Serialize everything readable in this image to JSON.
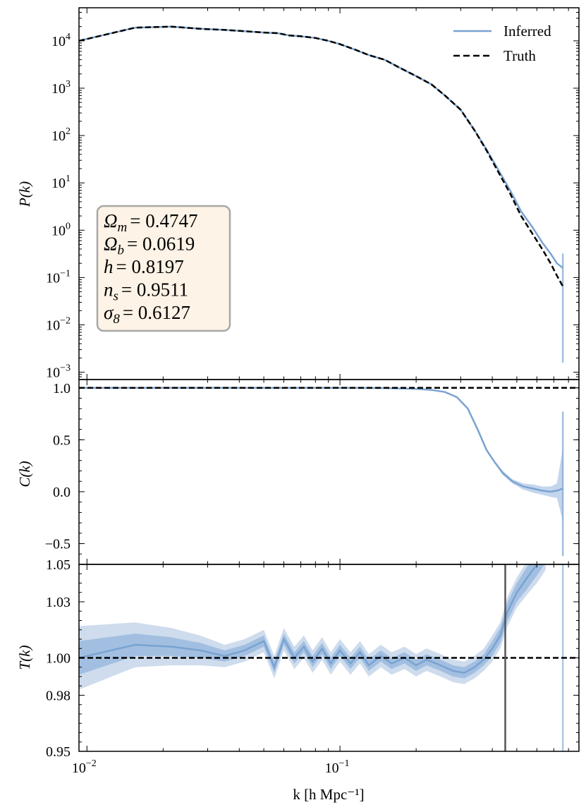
{
  "chart_data": {
    "type": "line",
    "xscale": "log",
    "xlim": [
      0.0093,
      0.88
    ],
    "xlabel": "k [h Mpc⁻¹]",
    "x_ticks": [
      {
        "value": 0.01,
        "base": "10",
        "exp": "−2"
      },
      {
        "value": 0.1,
        "base": "10",
        "exp": "−1"
      }
    ],
    "parameters": [
      {
        "symbol": "Ω",
        "sub": "m",
        "value": "= 0.4747"
      },
      {
        "symbol": "Ω",
        "sub": "b",
        "value": "= 0.0619"
      },
      {
        "symbol": "h",
        "sub": "",
        "value": "= 0.8197"
      },
      {
        "symbol": "n",
        "sub": "s",
        "value": "= 0.9511"
      },
      {
        "symbol": "σ",
        "sub": "8",
        "value": "= 0.6127"
      }
    ],
    "panels": [
      {
        "name": "P(k)",
        "ylabel": "P(k)",
        "yscale": "log",
        "ylim": [
          0.0007,
          50000
        ],
        "y_ticks": [
          {
            "value": 10000,
            "base": "10",
            "exp": "4"
          },
          {
            "value": 1000,
            "base": "10",
            "exp": "3"
          },
          {
            "value": 100,
            "base": "10",
            "exp": "2"
          },
          {
            "value": 10,
            "base": "10",
            "exp": "1"
          },
          {
            "value": 1,
            "base": "10",
            "exp": "0"
          },
          {
            "value": 0.1,
            "base": "10",
            "exp": "−1"
          },
          {
            "value": 0.01,
            "base": "10",
            "exp": "−2"
          },
          {
            "value": 0.001,
            "base": "10",
            "exp": "−3"
          }
        ],
        "legend_position": "top-right",
        "series": [
          {
            "name": "Inferred",
            "color": "#7aa3d1",
            "style": "solid",
            "x": [
              0.0093,
              0.0155,
              0.0215,
              0.028,
              0.035,
              0.042,
              0.05,
              0.057,
              0.063,
              0.07,
              0.08,
              0.09,
              0.1,
              0.115,
              0.13,
              0.15,
              0.17,
              0.2,
              0.23,
              0.26,
              0.3,
              0.34,
              0.38,
              0.42,
              0.47,
              0.52,
              0.58,
              0.63,
              0.68,
              0.72,
              0.76
            ],
            "y": [
              10000,
              19000,
              20000,
              18000,
              17000,
              16000,
              15000,
              14500,
              13000,
              12500,
              11500,
              10000,
              8500,
              6500,
              5000,
              4000,
              2800,
              1800,
              1200,
              700,
              350,
              130,
              50,
              20,
              7,
              2.5,
              1.1,
              0.55,
              0.32,
              0.2,
              0.16
            ]
          },
          {
            "name": "Truth",
            "color": "#000000",
            "style": "dashed",
            "x": [
              0.0093,
              0.0155,
              0.0215,
              0.028,
              0.035,
              0.042,
              0.05,
              0.057,
              0.063,
              0.07,
              0.08,
              0.09,
              0.1,
              0.115,
              0.13,
              0.15,
              0.17,
              0.2,
              0.23,
              0.26,
              0.3,
              0.34,
              0.38,
              0.42,
              0.47,
              0.52,
              0.58,
              0.63,
              0.68,
              0.72,
              0.76
            ],
            "y": [
              10000,
              19000,
              20000,
              18000,
              17000,
              16000,
              15000,
              14500,
              13000,
              12500,
              11500,
              10000,
              8500,
              6500,
              5000,
              4000,
              2800,
              1800,
              1200,
              700,
              350,
              130,
              48,
              18,
              6,
              2,
              0.8,
              0.4,
              0.2,
              0.11,
              0.065
            ]
          }
        ]
      },
      {
        "name": "C(k)",
        "ylabel": "C(k)",
        "yscale": "linear",
        "ylim": [
          -0.7,
          1.08
        ],
        "y_ticks": [
          {
            "value": 1.0,
            "label": "1.0"
          },
          {
            "value": 0.5,
            "label": "0.5"
          },
          {
            "value": 0.0,
            "label": "0.0"
          },
          {
            "value": -0.5,
            "label": "−0.5"
          }
        ],
        "reference_line": 1.0,
        "series": [
          {
            "name": "Inferred",
            "color": "#7aa3d1",
            "x": [
              0.0093,
              0.02,
              0.05,
              0.1,
              0.15,
              0.2,
              0.23,
              0.26,
              0.29,
              0.32,
              0.35,
              0.38,
              0.41,
              0.44,
              0.48,
              0.53,
              0.58,
              0.63,
              0.68,
              0.72,
              0.76
            ],
            "y": [
              1.0,
              1.0,
              1.0,
              1.0,
              0.998,
              0.99,
              0.98,
              0.96,
              0.91,
              0.8,
              0.6,
              0.4,
              0.28,
              0.18,
              0.1,
              0.05,
              0.03,
              0.01,
              0.0,
              0.01,
              0.03
            ],
            "band_lower": [
              1.0,
              1.0,
              1.0,
              1.0,
              0.997,
              0.988,
              0.975,
              0.955,
              0.9,
              0.79,
              0.59,
              0.39,
              0.27,
              0.16,
              0.08,
              0.02,
              -0.01,
              -0.03,
              -0.05,
              -0.06,
              -0.28
            ],
            "band_upper": [
              1.0,
              1.0,
              1.0,
              1.0,
              0.999,
              0.992,
              0.985,
              0.965,
              0.92,
              0.81,
              0.61,
              0.41,
              0.29,
              0.2,
              0.12,
              0.08,
              0.07,
              0.05,
              0.05,
              0.08,
              0.42
            ]
          }
        ]
      },
      {
        "name": "T(k)",
        "ylabel": "T(k)",
        "yscale": "linear",
        "ylim": [
          0.95,
          1.05
        ],
        "y_ticks": [
          {
            "value": 1.05,
            "label": "1.05"
          },
          {
            "value": 1.03,
            "label": "1.03"
          },
          {
            "value": 1.0,
            "label": "1.00"
          },
          {
            "value": 0.98,
            "label": "0.98"
          },
          {
            "value": 0.95,
            "label": "0.95"
          }
        ],
        "reference_line": 1.0,
        "vertical_line": 0.45,
        "series": [
          {
            "name": "Inferred",
            "color": "#7aa3d1",
            "x": [
              0.0093,
              0.0155,
              0.0215,
              0.028,
              0.035,
              0.042,
              0.05,
              0.055,
              0.06,
              0.066,
              0.072,
              0.078,
              0.085,
              0.092,
              0.1,
              0.11,
              0.12,
              0.13,
              0.145,
              0.16,
              0.18,
              0.2,
              0.22,
              0.25,
              0.28,
              0.31,
              0.34,
              0.37,
              0.4,
              0.43,
              0.46,
              0.5,
              0.55,
              0.6,
              0.65
            ],
            "y": [
              1.0,
              1.007,
              1.006,
              1.004,
              1.001,
              1.004,
              1.009,
              0.995,
              1.01,
              1.0,
              1.006,
              0.998,
              1.005,
              0.997,
              1.004,
              0.997,
              1.003,
              0.996,
              1.001,
              0.997,
              1.0,
              0.996,
              0.999,
              0.996,
              0.993,
              0.992,
              0.995,
              0.999,
              1.005,
              1.012,
              1.025,
              1.035,
              1.043,
              1.05,
              1.058
            ],
            "band_inner_halfwidth": [
              0.009,
              0.006,
              0.005,
              0.004,
              0.003,
              0.003,
              0.003,
              0.003,
              0.003,
              0.003,
              0.003,
              0.003,
              0.003,
              0.003,
              0.003,
              0.003,
              0.003,
              0.003,
              0.003,
              0.003,
              0.003,
              0.003,
              0.003,
              0.003,
              0.003,
              0.003,
              0.003,
              0.003,
              0.004,
              0.004,
              0.005,
              0.005,
              0.006,
              0.006,
              0.007
            ],
            "band_outer_halfwidth": [
              0.017,
              0.012,
              0.01,
              0.008,
              0.006,
              0.006,
              0.006,
              0.006,
              0.006,
              0.006,
              0.006,
              0.006,
              0.006,
              0.006,
              0.006,
              0.006,
              0.006,
              0.006,
              0.006,
              0.006,
              0.006,
              0.006,
              0.006,
              0.006,
              0.006,
              0.006,
              0.006,
              0.006,
              0.007,
              0.007,
              0.008,
              0.008,
              0.009,
              0.01,
              0.011
            ]
          }
        ]
      }
    ]
  },
  "colors": {
    "inferred": "#7aa3d1",
    "band_light": "#c5d6ea",
    "band_mid": "#93b5dc",
    "truth": "#000000",
    "param_box_fill": "#fdf3e6",
    "param_box_stroke": "#a7a7a7"
  }
}
